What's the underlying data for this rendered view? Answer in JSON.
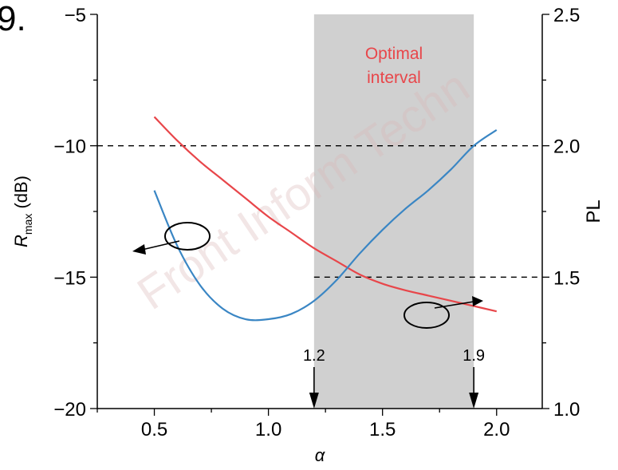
{
  "panel_label": "9.",
  "watermark": "Front Inform Techn",
  "colors": {
    "red_series": "#e8464a",
    "blue_series": "#3a86c4",
    "shade": "#d0d0d0",
    "axis": "#000000"
  },
  "chart_data": {
    "type": "line",
    "xlabel": "α",
    "ylabel_left": "R",
    "ylabel_left_subscript": "max",
    "ylabel_left_unit": " (dB)",
    "ylabel_right": "PL",
    "xlim": [
      0.25,
      2.2
    ],
    "ylim_left": [
      -20,
      -5
    ],
    "ylim_right": [
      1.0,
      2.5
    ],
    "x_ticks": [
      0.5,
      1.0,
      1.5,
      2.0
    ],
    "x_tick_labels": [
      "0.5",
      "1.0",
      "1.5",
      "2.0"
    ],
    "y_left_ticks": [
      -20,
      -15,
      -10,
      -5
    ],
    "y_left_tick_labels": [
      "−20",
      "−15",
      "−10",
      "−5"
    ],
    "y_right_ticks": [
      1.0,
      1.5,
      2.0,
      2.5
    ],
    "y_right_tick_labels": [
      "1.0",
      "1.5",
      "2.0",
      "2.5"
    ],
    "shaded_interval": [
      1.2,
      1.9
    ],
    "shaded_label_line1": "Optimal",
    "shaded_label_line2": "interval",
    "interval_markers": [
      {
        "x": 1.2,
        "label": "1.2"
      },
      {
        "x": 1.9,
        "label": "1.9"
      }
    ],
    "reference_lines_right_axis": [
      2.0,
      1.5
    ],
    "series": [
      {
        "axis": "right",
        "x": [
          0.5,
          0.6,
          0.7,
          0.8,
          0.9,
          1.0,
          1.1,
          1.2,
          1.3,
          1.4,
          1.5,
          1.6,
          1.7,
          1.8,
          1.9,
          2.0
        ],
        "y": [
          2.11,
          2.02,
          1.94,
          1.87,
          1.8,
          1.73,
          1.67,
          1.61,
          1.56,
          1.51,
          1.475,
          1.45,
          1.43,
          1.41,
          1.39,
          1.37
        ]
      },
      {
        "axis": "left",
        "x": [
          0.5,
          0.6,
          0.7,
          0.8,
          0.9,
          1.0,
          1.1,
          1.2,
          1.3,
          1.4,
          1.5,
          1.6,
          1.7,
          1.8,
          1.9,
          2.0
        ],
        "y": [
          -11.7,
          -13.8,
          -15.3,
          -16.2,
          -16.6,
          -16.6,
          -16.4,
          -15.9,
          -15.1,
          -14.1,
          -13.2,
          -12.4,
          -11.7,
          -10.9,
          -10.0,
          -9.4
        ]
      }
    ]
  }
}
